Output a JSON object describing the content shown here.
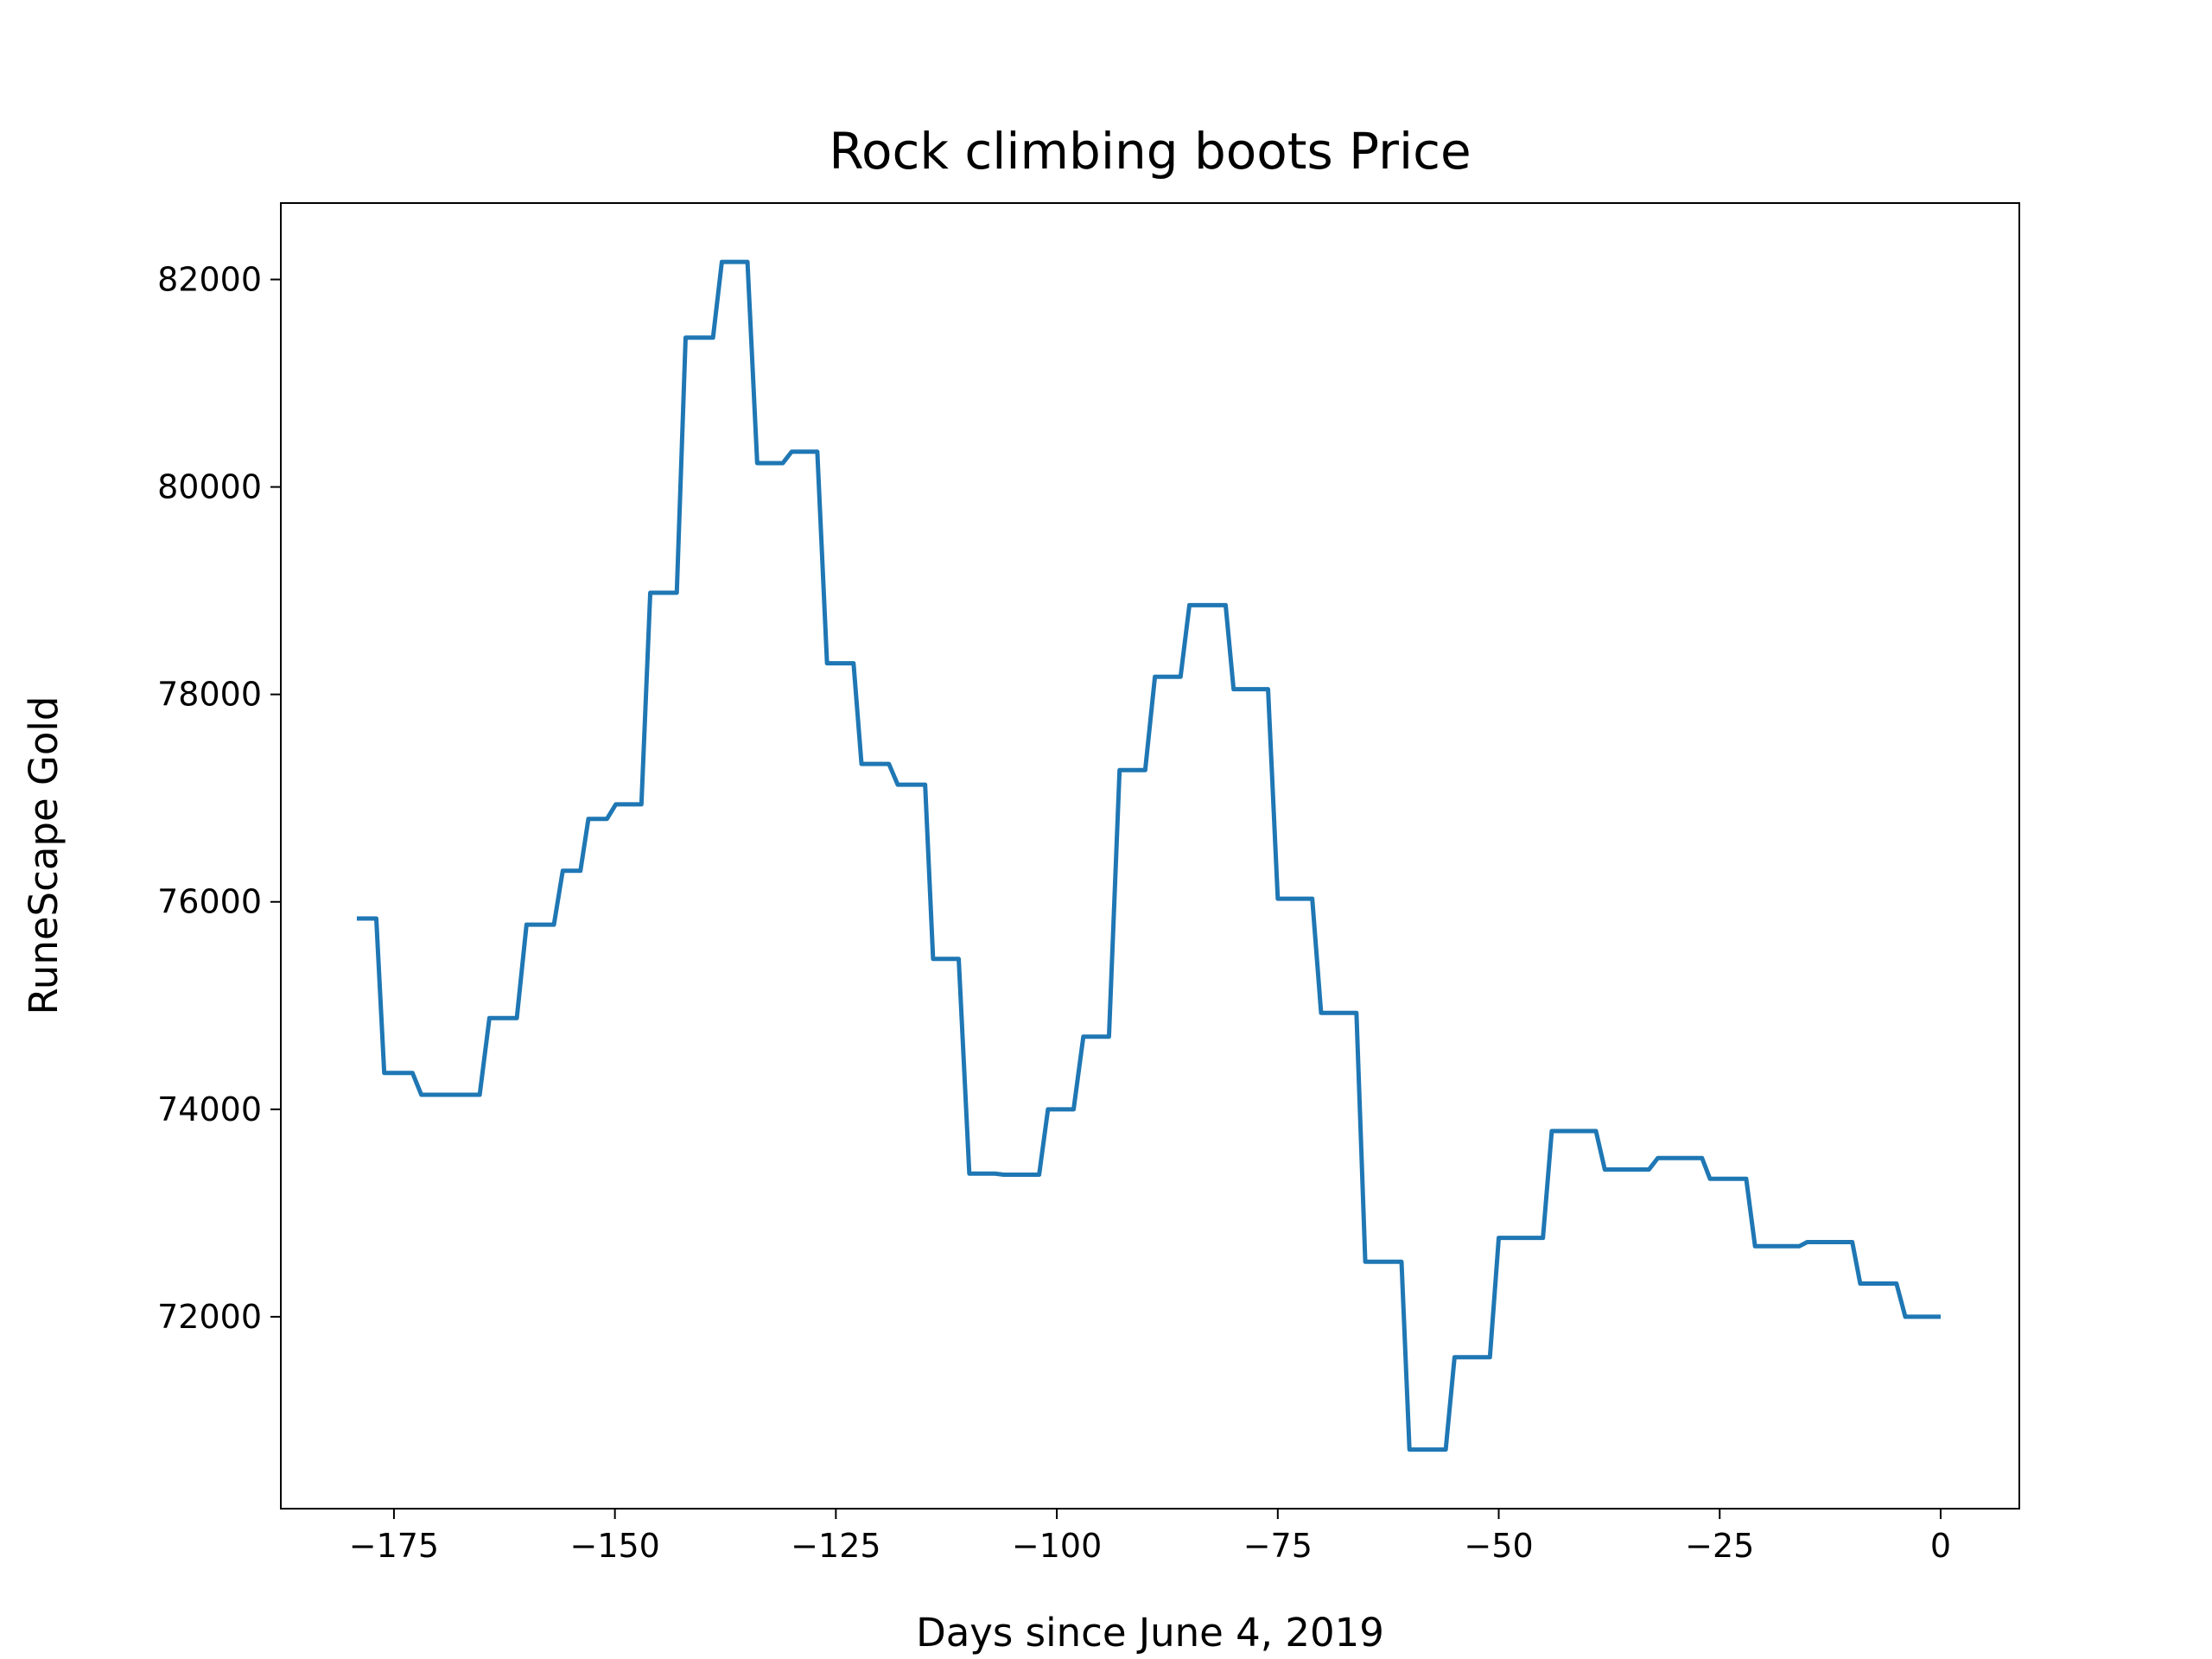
{
  "chart_data": {
    "type": "line",
    "title": "Rock climbing boots Price",
    "x_label": "Days since June 4, 2019",
    "y_label": "RuneScape Gold",
    "color": "#1f77b4",
    "x": [
      -179.2,
      -177,
      -176.1,
      -172.9,
      -171.9,
      -165.3,
      -164.2,
      -161.1,
      -160,
      -156.9,
      -155.9,
      -153.9,
      -153,
      -150.9,
      -149.9,
      -147,
      -146,
      -143,
      -142,
      -138.9,
      -137.9,
      -135,
      -133.9,
      -131,
      -130,
      -127.1,
      -126,
      -123,
      -122.1,
      -119,
      -118,
      -114.9,
      -114,
      -111.1,
      -109.9,
      -107,
      -106,
      -102,
      -101,
      -98.1,
      -97,
      -94.1,
      -92.9,
      -90,
      -88.9,
      -86,
      -85,
      -80.9,
      -80,
      -76.1,
      -75,
      -71.1,
      -70.1,
      -66.1,
      -65.1,
      -61,
      -60.1,
      -56,
      -55,
      -51,
      -50,
      -45,
      -44,
      -39,
      -38,
      -33,
      -32,
      -27,
      -26.1,
      -22,
      -21,
      -16,
      -15.1,
      -10,
      -9.1,
      -5,
      -4,
      0
    ],
    "values": [
      75840,
      75840,
      74350,
      74350,
      74140,
      74140,
      74880,
      74880,
      75780,
      75780,
      76300,
      76300,
      76800,
      76800,
      76940,
      76940,
      78980,
      78980,
      81440,
      81440,
      82170,
      82170,
      80230,
      80230,
      80340,
      80340,
      78300,
      78300,
      77330,
      77330,
      77130,
      77130,
      75450,
      75450,
      73380,
      73380,
      73370,
      73370,
      74000,
      74000,
      74700,
      74700,
      77270,
      77270,
      78170,
      78170,
      78860,
      78860,
      78050,
      78050,
      76030,
      76030,
      74930,
      74930,
      72530,
      72530,
      70720,
      70720,
      71610,
      71610,
      72760,
      72760,
      73790,
      73790,
      73420,
      73420,
      73530,
      73530,
      73330,
      73330,
      72680,
      72680,
      72720,
      72720,
      72320,
      72320,
      72000,
      72000
    ],
    "xlim": [
      -187.8,
      8.9
    ],
    "ylim": [
      70150,
      82737
    ],
    "xticks": [
      {
        "value": -175,
        "label": "−175"
      },
      {
        "value": -150,
        "label": "−150"
      },
      {
        "value": -125,
        "label": "−125"
      },
      {
        "value": -100,
        "label": "−100"
      },
      {
        "value": -75,
        "label": "−75"
      },
      {
        "value": -50,
        "label": "−50"
      },
      {
        "value": -25,
        "label": "−25"
      },
      0
    ],
    "yticks": [
      72000,
      74000,
      76000,
      78000,
      80000,
      82000
    ],
    "grid": false
  }
}
